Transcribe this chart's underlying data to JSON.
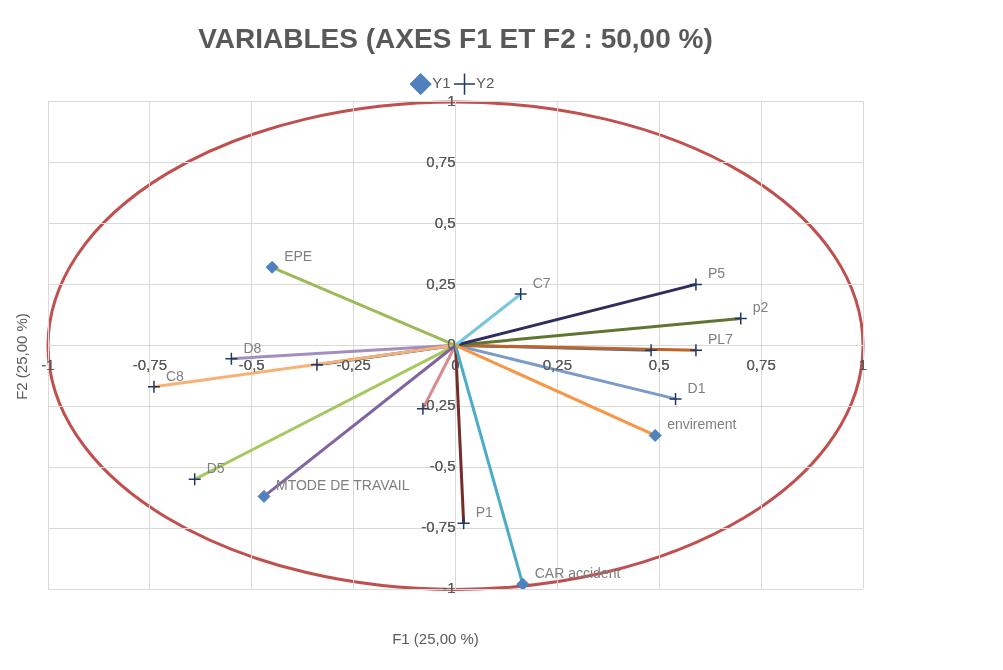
{
  "chart_data": {
    "type": "scatter",
    "title": "VARIABLES (AXES F1 ET F2 : 50,00 %)",
    "xlabel": "F1 (25,00 %)",
    "ylabel": "F2 (25,00 %)",
    "xlim": [
      -1,
      1
    ],
    "ylim": [
      -1,
      1
    ],
    "xticks": [
      {
        "value": -1,
        "label": "-1"
      },
      {
        "value": -0.75,
        "label": "-0,75"
      },
      {
        "value": -0.5,
        "label": "-0,5"
      },
      {
        "value": -0.25,
        "label": "-0,25"
      },
      {
        "value": 0,
        "label": "0"
      },
      {
        "value": 0.25,
        "label": "0,25"
      },
      {
        "value": 0.5,
        "label": "0,5"
      },
      {
        "value": 0.75,
        "label": "0,75"
      },
      {
        "value": 1,
        "label": "1"
      }
    ],
    "yticks": [
      {
        "value": -1,
        "label": "-1"
      },
      {
        "value": -0.75,
        "label": "-0,75"
      },
      {
        "value": -0.5,
        "label": "-0,5"
      },
      {
        "value": -0.25,
        "label": "-0,25"
      },
      {
        "value": 0,
        "label": "0"
      },
      {
        "value": 0.25,
        "label": "0,25"
      },
      {
        "value": 0.5,
        "label": "0,5"
      },
      {
        "value": 0.75,
        "label": "0,75"
      },
      {
        "value": 1,
        "label": "1"
      }
    ],
    "grid": true,
    "legend": "top",
    "series": [
      {
        "type": "line",
        "color": "#9bbb59",
        "marker": "none",
        "x": [
          0,
          -0.45
        ],
        "values": [
          0,
          0.32
        ]
      },
      {
        "type": "line",
        "color": "#8064a2",
        "marker": "none",
        "x": [
          0,
          -0.47
        ],
        "values": [
          0,
          -0.62
        ]
      },
      {
        "type": "line",
        "color": "#f79646",
        "marker": "none",
        "x": [
          0,
          0.49
        ],
        "values": [
          0,
          -0.37
        ]
      },
      {
        "type": "line",
        "color": "#4bacc6",
        "marker": "none",
        "x": [
          0,
          0.165
        ],
        "values": [
          0,
          -0.98
        ]
      },
      {
        "type": "line",
        "color": "#77c6dc",
        "marker": "none",
        "x": [
          0,
          0.16
        ],
        "values": [
          0,
          0.21
        ]
      },
      {
        "type": "line",
        "color": "#2f2d5e",
        "marker": "none",
        "x": [
          0,
          0.59
        ],
        "values": [
          0,
          0.25
        ]
      },
      {
        "type": "line",
        "color": "#5f7530",
        "marker": "none",
        "x": [
          0,
          0.7
        ],
        "values": [
          0,
          0.11
        ]
      },
      {
        "type": "line",
        "color": "#c0652a",
        "marker": "none",
        "x": [
          0,
          0.59
        ],
        "values": [
          0,
          -0.02
        ]
      },
      {
        "type": "line",
        "color": "#3f6b9a",
        "marker": "none",
        "x": [
          0,
          0.48
        ],
        "values": [
          0,
          -0.02
        ]
      },
      {
        "type": "line",
        "color": "#7b9bc9",
        "marker": "none",
        "x": [
          0,
          0.54
        ],
        "values": [
          0,
          -0.22
        ]
      },
      {
        "type": "line",
        "color": "#772c2a",
        "marker": "none",
        "x": [
          0,
          0.02
        ],
        "values": [
          0,
          -0.73
        ]
      },
      {
        "type": "line",
        "color": "#d98a8a",
        "marker": "none",
        "x": [
          0,
          -0.08
        ],
        "values": [
          0,
          -0.26
        ]
      },
      {
        "type": "line",
        "color": "#f9b074",
        "marker": "none",
        "x": [
          0,
          -0.74
        ],
        "values": [
          0,
          -0.17
        ]
      },
      {
        "type": "line",
        "color": "#a18fc0",
        "marker": "none",
        "x": [
          0,
          -0.55
        ],
        "values": [
          0,
          -0.055
        ]
      },
      {
        "type": "line",
        "color": "#1f497d",
        "marker": "none",
        "x": [
          0,
          -0.34
        ],
        "values": [
          0,
          -0.08
        ]
      },
      {
        "type": "line",
        "color": "#a6c860",
        "marker": "none",
        "x": [
          0,
          -0.64
        ],
        "values": [
          0,
          -0.55
        ]
      },
      {
        "name": "Y1",
        "color": "#4f81bd",
        "marker": "diamond",
        "x": [
          -0.45,
          -0.47,
          0.49,
          0.165
        ],
        "values": [
          0.32,
          -0.62,
          -0.37,
          -0.98
        ],
        "value_labels": [
          "EPE",
          "MTODE DE TRAVAIL",
          "envirement",
          "CAR accident"
        ]
      },
      {
        "name": "Y2",
        "color": "#1f3864",
        "marker": "cross",
        "x": [
          0.16,
          0.59,
          0.7,
          0.59,
          0.48,
          0.54,
          0.02,
          -0.08,
          -0.74,
          -0.55,
          -0.34,
          -0.64
        ],
        "values": [
          0.21,
          0.25,
          0.11,
          -0.02,
          -0.02,
          -0.22,
          -0.73,
          -0.26,
          -0.17,
          -0.055,
          -0.08,
          -0.55
        ],
        "value_labels": [
          "C7",
          "P5",
          "p2",
          "PL7",
          null,
          "D1",
          "P1",
          null,
          "C8",
          "D8",
          null,
          "D5"
        ]
      }
    ]
  }
}
